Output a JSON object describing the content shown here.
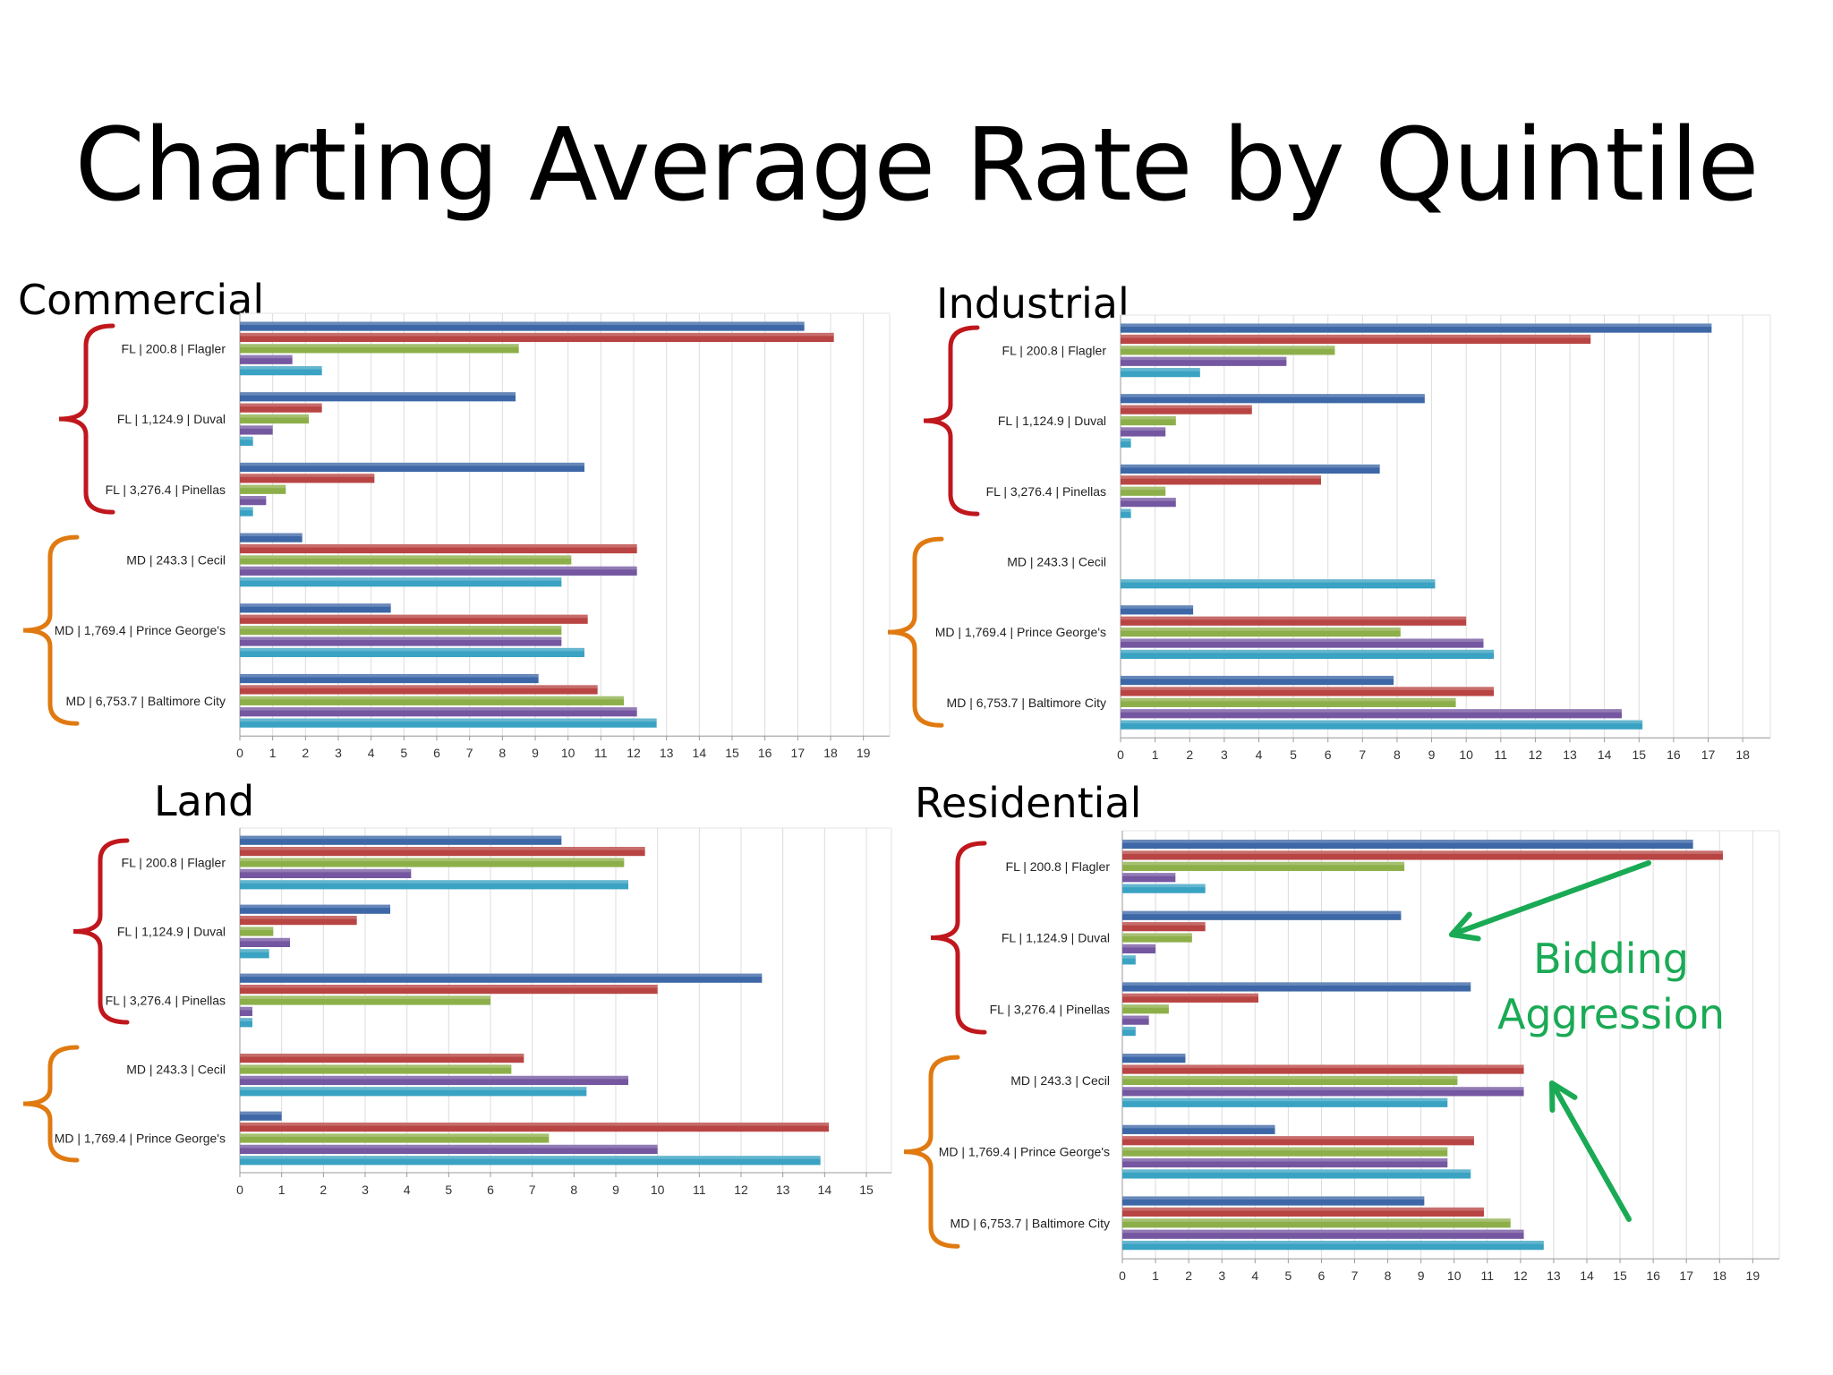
{
  "slide": {
    "title": "Charting Average Rate by Quintile",
    "annotation_lines": [
      "Bidding",
      "Aggression"
    ],
    "annotation_color": "#1aaa55",
    "fl_bracket_color": "#c0171d",
    "md_bracket_color": "#e07a10"
  },
  "series_colors": [
    "#3d67a6",
    "#b84543",
    "#8daf4a",
    "#7457a0",
    "#3aa2c2"
  ],
  "chart_data": [
    {
      "type": "bar",
      "title": "Commercial",
      "orientation": "horizontal",
      "categories": [
        "FL | 200.8 | Flagler",
        "FL | 1,124.9 | Duval",
        "FL | 3,276.4 | Pinellas",
        "MD | 243.3 | Cecil",
        "MD | 1,769.4 | Prince George's",
        "MD | 6,753.7 | Baltimore City"
      ],
      "category_state": [
        "FL",
        "FL",
        "FL",
        "MD",
        "MD",
        "MD"
      ],
      "series": [
        {
          "values": [
            17.2,
            8.4,
            10.5,
            1.9,
            4.6,
            9.1
          ]
        },
        {
          "values": [
            18.1,
            2.5,
            4.1,
            12.1,
            10.6,
            10.9
          ]
        },
        {
          "values": [
            8.5,
            2.1,
            1.4,
            10.1,
            9.8,
            11.7
          ]
        },
        {
          "values": [
            1.6,
            1.0,
            0.8,
            12.1,
            9.8,
            12.1
          ]
        },
        {
          "values": [
            2.5,
            0.4,
            0.4,
            9.8,
            10.5,
            12.7
          ]
        }
      ],
      "xlim": [
        0,
        19.8
      ],
      "xticks": [
        "0",
        "1",
        "2",
        "3",
        "4",
        "5",
        "6",
        "7",
        "8",
        "9",
        "10",
        "11",
        "12",
        "13",
        "14",
        "15",
        "16",
        "17",
        "18",
        "19"
      ],
      "grid": true
    },
    {
      "type": "bar",
      "title": "Industrial",
      "orientation": "horizontal",
      "categories": [
        "FL | 200.8 | Flagler",
        "FL | 1,124.9 | Duval",
        "FL | 3,276.4 | Pinellas",
        "MD | 243.3 | Cecil",
        "MD | 1,769.4 | Prince George's",
        "MD | 6,753.7 | Baltimore City"
      ],
      "category_state": [
        "FL",
        "FL",
        "FL",
        "MD",
        "MD",
        "MD"
      ],
      "series": [
        {
          "values": [
            17.1,
            8.8,
            7.5,
            0,
            2.1,
            7.9
          ]
        },
        {
          "values": [
            13.6,
            3.8,
            5.8,
            0,
            10.0,
            10.8
          ]
        },
        {
          "values": [
            6.2,
            1.6,
            1.3,
            0,
            8.1,
            9.7
          ]
        },
        {
          "values": [
            4.8,
            1.3,
            1.6,
            0,
            10.5,
            14.5
          ]
        },
        {
          "values": [
            2.3,
            0.3,
            0.3,
            9.1,
            10.8,
            15.1
          ]
        }
      ],
      "xlim": [
        0,
        18.8
      ],
      "xticks": [
        "0",
        "1",
        "2",
        "3",
        "4",
        "5",
        "6",
        "7",
        "8",
        "9",
        "10",
        "11",
        "12",
        "13",
        "14",
        "15",
        "16",
        "17",
        "18"
      ],
      "grid": true
    },
    {
      "type": "bar",
      "title": "Land",
      "orientation": "horizontal",
      "categories": [
        "FL | 200.8 | Flagler",
        "FL | 1,124.9 | Duval",
        "FL | 3,276.4 | Pinellas",
        "MD | 243.3 | Cecil",
        "MD | 1,769.4 | Prince George's"
      ],
      "category_state": [
        "FL",
        "FL",
        "FL",
        "MD",
        "MD"
      ],
      "series": [
        {
          "values": [
            7.7,
            3.6,
            12.5,
            0,
            1.0
          ]
        },
        {
          "values": [
            9.7,
            2.8,
            10.0,
            6.8,
            14.1
          ]
        },
        {
          "values": [
            9.2,
            0.8,
            6.0,
            6.5,
            7.4
          ]
        },
        {
          "values": [
            4.1,
            1.2,
            0.3,
            9.3,
            10.0
          ]
        },
        {
          "values": [
            9.3,
            0.7,
            0.3,
            8.3,
            13.9
          ]
        }
      ],
      "xlim": [
        0,
        15.6
      ],
      "xticks": [
        "0",
        "1",
        "2",
        "3",
        "4",
        "5",
        "6",
        "7",
        "8",
        "9",
        "10",
        "11",
        "12",
        "13",
        "14",
        "15"
      ],
      "grid": true
    },
    {
      "type": "bar",
      "title": "Residential",
      "orientation": "horizontal",
      "categories": [
        "FL | 200.8 | Flagler",
        "FL | 1,124.9 | Duval",
        "FL | 3,276.4 | Pinellas",
        "MD | 243.3 | Cecil",
        "MD | 1,769.4 | Prince George's",
        "MD | 6,753.7 | Baltimore City"
      ],
      "category_state": [
        "FL",
        "FL",
        "FL",
        "MD",
        "MD",
        "MD"
      ],
      "series": [
        {
          "values": [
            17.2,
            8.4,
            10.5,
            1.9,
            4.6,
            9.1
          ]
        },
        {
          "values": [
            18.1,
            2.5,
            4.1,
            12.1,
            10.6,
            10.9
          ]
        },
        {
          "values": [
            8.5,
            2.1,
            1.4,
            10.1,
            9.8,
            11.7
          ]
        },
        {
          "values": [
            1.6,
            1.0,
            0.8,
            12.1,
            9.8,
            12.1
          ]
        },
        {
          "values": [
            2.5,
            0.4,
            0.4,
            9.8,
            10.5,
            12.7
          ]
        }
      ],
      "xlim": [
        0,
        19.8
      ],
      "xticks": [
        "0",
        "1",
        "2",
        "3",
        "4",
        "5",
        "6",
        "7",
        "8",
        "9",
        "10",
        "11",
        "12",
        "13",
        "14",
        "15",
        "16",
        "17",
        "18",
        "19"
      ],
      "grid": true
    }
  ]
}
